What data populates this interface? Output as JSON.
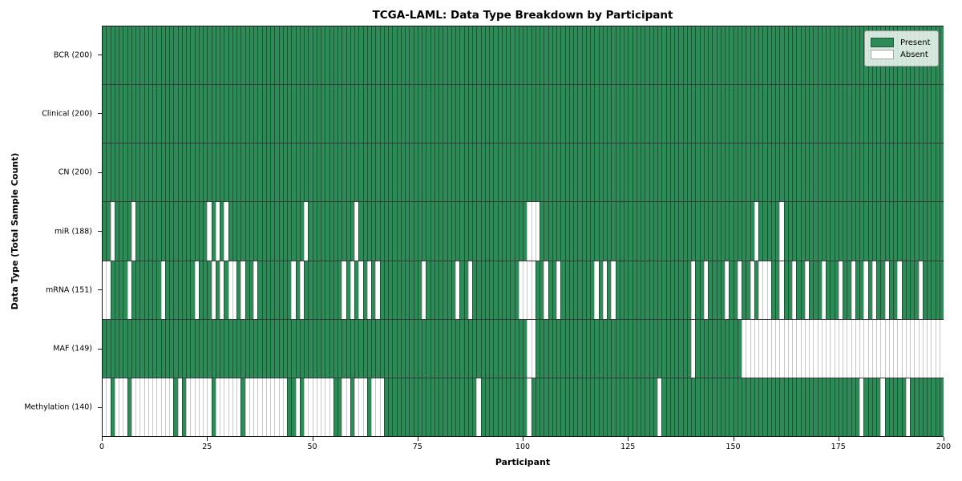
{
  "figure": {
    "title": "TCGA-LAML: Data Type Breakdown by Participant",
    "xlabel": "Participant",
    "ylabel": "Data Type (Total Sample Count)"
  },
  "legend": {
    "position": "upper right",
    "entries": [
      {
        "label": "Present",
        "color": "#2e8b57"
      },
      {
        "label": "Absent",
        "color": "#ffffff"
      }
    ]
  },
  "colors": {
    "present": "#2e8b57",
    "absent": "#ffffff",
    "frame": "#1a1a1a"
  },
  "chart_data": {
    "type": "heatmap",
    "title": "TCGA-LAML: Data Type Breakdown by Participant",
    "xlabel": "Participant",
    "ylabel": "Data Type (Total Sample Count)",
    "grid": false,
    "legend_position": "upper right",
    "legend_entries": [
      "Present",
      "Absent"
    ],
    "n_participants": 200,
    "xlim": [
      0,
      200
    ],
    "x_ticks": [
      0,
      25,
      50,
      75,
      100,
      125,
      150,
      175,
      200
    ],
    "rows": [
      {
        "label": "BCR (200)",
        "data_type": "BCR",
        "total_samples": 200,
        "absent_participants": []
      },
      {
        "label": "Clinical (200)",
        "data_type": "Clinical",
        "total_samples": 200,
        "absent_participants": []
      },
      {
        "label": "CN (200)",
        "data_type": "CN",
        "total_samples": 200,
        "absent_participants": []
      },
      {
        "label": "miR (188)",
        "data_type": "miR",
        "total_samples": 188,
        "absent_participants": [
          2,
          7,
          25,
          27,
          29,
          48,
          60,
          101,
          102,
          103,
          155,
          161
        ]
      },
      {
        "label": "mRNA (151)",
        "data_type": "mRNA",
        "total_samples": 151,
        "absent_participants": [
          0,
          1,
          6,
          14,
          22,
          26,
          28,
          30,
          31,
          33,
          36,
          45,
          47,
          57,
          59,
          61,
          63,
          65,
          76,
          84,
          87,
          99,
          100,
          101,
          102,
          105,
          108,
          117,
          119,
          121,
          140,
          143,
          148,
          151,
          154,
          156,
          157,
          158,
          161,
          164,
          167,
          171,
          175,
          178,
          181,
          183,
          186,
          189,
          194
        ]
      },
      {
        "label": "MAF (149)",
        "data_type": "MAF",
        "total_samples": 149,
        "absent_participants": [
          101,
          102,
          140,
          152,
          153,
          154,
          155,
          156,
          157,
          158,
          159,
          160,
          161,
          162,
          163,
          164,
          165,
          166,
          167,
          168,
          169,
          170,
          171,
          172,
          173,
          174,
          175,
          176,
          177,
          178,
          179,
          180,
          181,
          182,
          183,
          184,
          185,
          186,
          187,
          188,
          189,
          190,
          191,
          192,
          193,
          194,
          195,
          196,
          197,
          198,
          199
        ]
      },
      {
        "label": "Methylation (140)",
        "data_type": "Methylation",
        "total_samples": 140,
        "absent_participants": [
          0,
          1,
          3,
          4,
          5,
          7,
          8,
          9,
          10,
          11,
          12,
          13,
          14,
          15,
          16,
          18,
          20,
          21,
          22,
          23,
          24,
          25,
          27,
          28,
          29,
          30,
          31,
          32,
          34,
          35,
          36,
          37,
          38,
          39,
          40,
          41,
          42,
          43,
          46,
          48,
          49,
          50,
          51,
          52,
          53,
          54,
          57,
          58,
          60,
          61,
          62,
          64,
          65,
          66,
          89,
          101,
          132,
          180,
          185,
          191
        ]
      }
    ]
  }
}
